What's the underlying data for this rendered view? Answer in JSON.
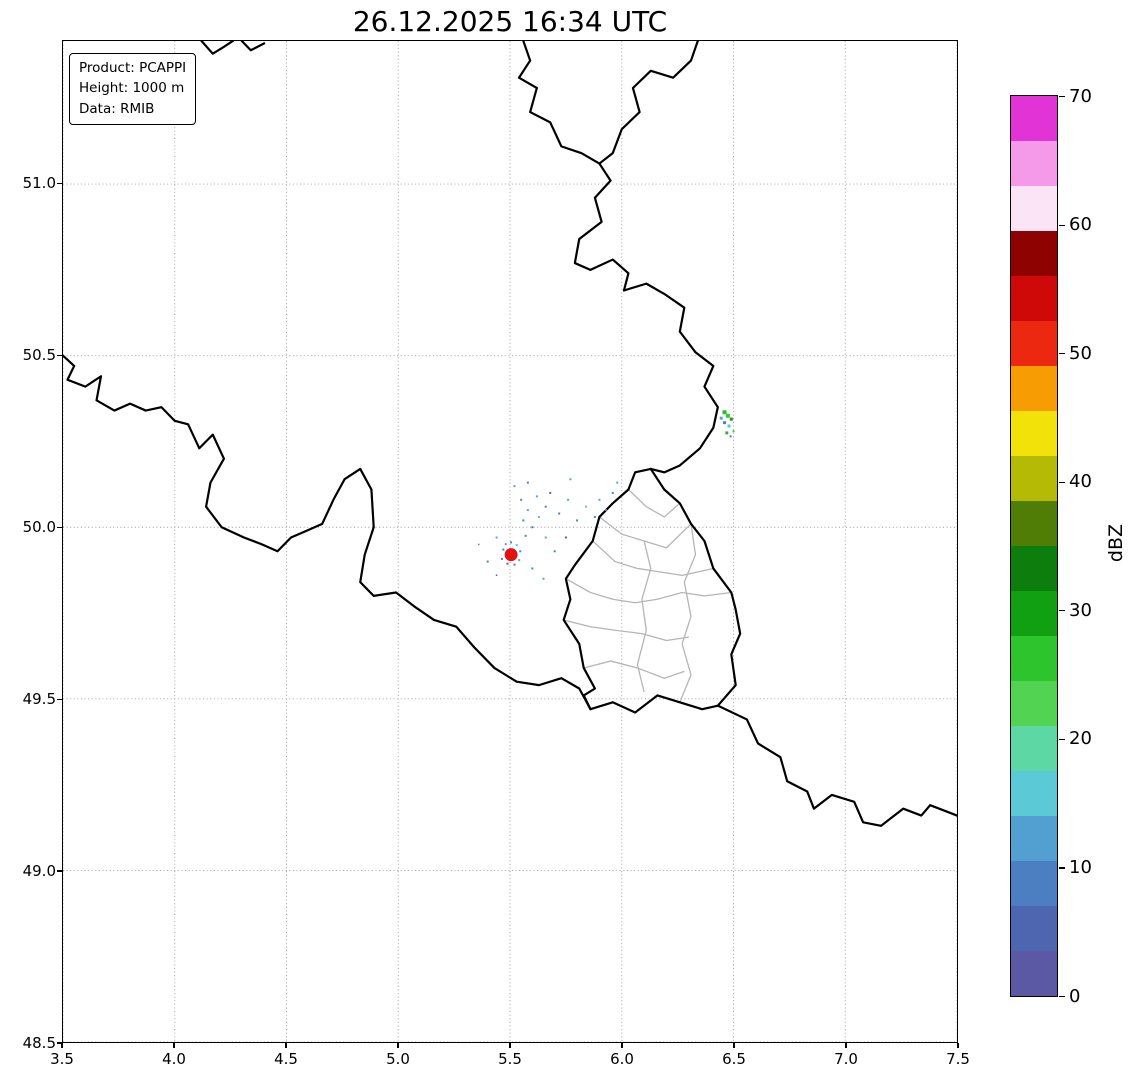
{
  "chart_data": {
    "type": "map",
    "title": "26.12.2025 16:34 UTC",
    "info_box_lines": [
      "Product: PCAPPI",
      "Height: 1000 m",
      "Data: RMIB"
    ],
    "x_range": [
      3.5,
      7.5
    ],
    "y_range": [
      48.5,
      51.417
    ],
    "x_ticks": [
      3.5,
      4.0,
      4.5,
      5.0,
      5.5,
      6.0,
      6.5,
      7.0,
      7.5
    ],
    "x_tick_labels": [
      "3.5",
      "4.0",
      "4.5",
      "5.0",
      "5.5",
      "6.0",
      "6.5",
      "7.0",
      "7.5"
    ],
    "y_ticks": [
      48.5,
      49.0,
      49.5,
      50.0,
      50.5,
      51.0
    ],
    "y_tick_labels": [
      "48.5",
      "49.0",
      "49.5",
      "50.0",
      "50.5",
      "51.0"
    ],
    "grid": "dotted",
    "grid_color": "#9a9a9a",
    "colorbar": {
      "label": "dBZ",
      "min": 0,
      "max": 70,
      "ticks": [
        0,
        10,
        20,
        30,
        40,
        50,
        60,
        70
      ],
      "tick_labels": [
        "0",
        "10",
        "20",
        "30",
        "40",
        "50",
        "60",
        "70"
      ],
      "colors_bottom_to_top": [
        "#5b59a3",
        "#4e66af",
        "#4b7fc2",
        "#52a0d2",
        "#5bc9d6",
        "#5dd8a5",
        "#52d352",
        "#2ec42e",
        "#11a011",
        "#0d7d0d",
        "#4f7d05",
        "#b5bb04",
        "#f2e20a",
        "#f79c02",
        "#ed2810",
        "#cf0808",
        "#8f0202",
        "#fbe4f6",
        "#f49ae9",
        "#e233d6"
      ]
    },
    "radar_site": {
      "lon": 5.505,
      "lat": 49.92,
      "color": "#e11212",
      "radius_px": 6.5
    },
    "echo_points": [
      [
        5.47,
        49.935,
        2,
        "#4f7fc4"
      ],
      [
        5.481,
        49.951,
        2,
        "#55a6d2"
      ],
      [
        5.505,
        49.956,
        2,
        "#4f7fc4"
      ],
      [
        5.53,
        49.948,
        2,
        "#5bc8d2"
      ],
      [
        5.546,
        49.93,
        2,
        "#4f7fc4"
      ],
      [
        5.541,
        49.904,
        2,
        "#55a6d2"
      ],
      [
        5.52,
        49.891,
        2,
        "#4f7fc4"
      ],
      [
        5.489,
        49.894,
        2,
        "#5560a8"
      ],
      [
        5.464,
        49.908,
        2,
        "#4f7fc4"
      ],
      [
        5.56,
        50.02,
        2,
        "#4f7fc4"
      ],
      [
        5.58,
        50.05,
        2,
        "#55a6d2"
      ],
      [
        5.6,
        50.0,
        2,
        "#4f7fc4"
      ],
      [
        5.63,
        50.03,
        2,
        "#5bc8d2"
      ],
      [
        5.66,
        50.06,
        2,
        "#4f7fc4"
      ],
      [
        5.62,
        50.09,
        2,
        "#55a6d2"
      ],
      [
        5.55,
        50.08,
        2,
        "#4f7fc4"
      ],
      [
        5.52,
        50.12,
        2,
        "#55a6d2"
      ],
      [
        5.58,
        50.13,
        2,
        "#4f7fc4"
      ],
      [
        5.68,
        50.1,
        2,
        "#5560a8"
      ],
      [
        5.72,
        50.04,
        2,
        "#4f7fc4"
      ],
      [
        5.76,
        50.08,
        2,
        "#55a6d2"
      ],
      [
        5.8,
        50.02,
        2,
        "#4f7fc4"
      ],
      [
        5.84,
        50.06,
        2,
        "#5bc8d2"
      ],
      [
        5.88,
        50.03,
        2,
        "#4f7fc4"
      ],
      [
        5.9,
        50.08,
        2,
        "#55a6d2"
      ],
      [
        5.93,
        50.05,
        2,
        "#4f7fc4"
      ],
      [
        5.66,
        49.97,
        2,
        "#55a6d2"
      ],
      [
        5.7,
        49.93,
        2,
        "#4f7fc4"
      ],
      [
        5.75,
        49.97,
        2,
        "#5560a8"
      ],
      [
        5.6,
        49.88,
        2,
        "#4f7fc4"
      ],
      [
        5.65,
        49.85,
        2,
        "#55a6d2"
      ],
      [
        5.57,
        49.975,
        2,
        "#4f7fc4"
      ],
      [
        5.44,
        49.97,
        2,
        "#55a6d2"
      ],
      [
        5.4,
        49.9,
        2,
        "#4f7fc4"
      ],
      [
        5.44,
        49.86,
        1.5,
        "#5560a8"
      ],
      [
        5.36,
        49.95,
        1.5,
        "#4f7fc4"
      ],
      [
        5.77,
        50.14,
        2,
        "#55a6d2"
      ],
      [
        5.96,
        50.1,
        2,
        "#4f7fc4"
      ],
      [
        5.98,
        50.13,
        2,
        "#55a6d2"
      ],
      [
        6.46,
        50.335,
        4,
        "#2db82d"
      ],
      [
        6.475,
        50.325,
        4,
        "#35c935"
      ],
      [
        6.46,
        50.305,
        3,
        "#4f7fc4"
      ],
      [
        6.48,
        50.295,
        3,
        "#5bc8d2"
      ],
      [
        6.47,
        50.275,
        3,
        "#2db82d"
      ],
      [
        6.49,
        50.315,
        3,
        "#109b10"
      ],
      [
        6.445,
        50.318,
        3,
        "#55a6d2"
      ],
      [
        6.487,
        50.265,
        2,
        "#4f7fc4"
      ],
      [
        6.5,
        50.28,
        2,
        "#35c935"
      ]
    ],
    "borders": {
      "country_color": "#000000",
      "country_width": 2.2,
      "region_color": "#b5b5b5",
      "region_width": 1.3,
      "country_paths": [
        [
          [
            4.12,
            51.417
          ],
          [
            4.17,
            51.38
          ],
          [
            4.22,
            51.4
          ],
          [
            4.26,
            51.417
          ]
        ],
        [
          [
            4.3,
            51.417
          ],
          [
            4.34,
            51.39
          ],
          [
            4.4,
            51.41
          ]
        ],
        [
          [
            5.56,
            51.417
          ],
          [
            5.59,
            51.36
          ],
          [
            5.54,
            51.31
          ],
          [
            5.62,
            51.28
          ],
          [
            5.59,
            51.21
          ],
          [
            5.68,
            51.18
          ],
          [
            5.73,
            51.11
          ],
          [
            5.82,
            51.09
          ],
          [
            5.9,
            51.06
          ]
        ],
        [
          [
            6.34,
            51.417
          ],
          [
            6.31,
            51.36
          ],
          [
            6.23,
            51.31
          ],
          [
            6.13,
            51.33
          ],
          [
            6.05,
            51.28
          ],
          [
            6.08,
            51.21
          ],
          [
            6.0,
            51.16
          ],
          [
            5.96,
            51.09
          ],
          [
            5.9,
            51.06
          ]
        ],
        [
          [
            5.9,
            51.06
          ],
          [
            5.95,
            51.01
          ],
          [
            5.88,
            50.96
          ],
          [
            5.91,
            50.89
          ],
          [
            5.81,
            50.84
          ],
          [
            5.79,
            50.77
          ],
          [
            5.86,
            50.75
          ],
          [
            5.96,
            50.78
          ],
          [
            6.03,
            50.74
          ],
          [
            6.01,
            50.69
          ],
          [
            6.11,
            50.71
          ],
          [
            6.19,
            50.68
          ],
          [
            6.28,
            50.64
          ],
          [
            6.26,
            50.57
          ],
          [
            6.33,
            50.51
          ],
          [
            6.41,
            50.47
          ],
          [
            6.37,
            50.41
          ],
          [
            6.43,
            50.35
          ],
          [
            6.41,
            50.29
          ],
          [
            6.35,
            50.23
          ],
          [
            6.26,
            50.18
          ],
          [
            6.19,
            50.16
          ],
          [
            6.13,
            50.17
          ]
        ],
        [
          [
            6.13,
            50.17
          ],
          [
            6.06,
            50.16
          ],
          [
            6.03,
            50.11
          ],
          [
            5.96,
            50.07
          ],
          [
            5.9,
            50.03
          ],
          [
            5.87,
            49.96
          ],
          [
            5.79,
            49.89
          ],
          [
            5.75,
            49.85
          ],
          [
            5.77,
            49.79
          ],
          [
            5.74,
            49.73
          ],
          [
            5.81,
            49.66
          ],
          [
            5.83,
            49.59
          ],
          [
            5.88,
            49.53
          ],
          [
            5.83,
            49.51
          ],
          [
            5.86,
            49.47
          ]
        ],
        [
          [
            5.86,
            49.47
          ],
          [
            5.96,
            49.49
          ],
          [
            6.06,
            49.46
          ],
          [
            6.16,
            49.51
          ],
          [
            6.26,
            49.49
          ],
          [
            6.36,
            49.47
          ],
          [
            6.43,
            49.48
          ],
          [
            6.51,
            49.54
          ],
          [
            6.49,
            49.63
          ],
          [
            6.53,
            49.69
          ],
          [
            6.51,
            49.76
          ],
          [
            6.49,
            49.81
          ],
          [
            6.41,
            49.88
          ],
          [
            6.37,
            49.96
          ],
          [
            6.31,
            50.01
          ],
          [
            6.26,
            50.07
          ],
          [
            6.19,
            50.11
          ],
          [
            6.13,
            50.17
          ]
        ],
        [
          [
            6.43,
            49.48
          ],
          [
            6.56,
            49.44
          ],
          [
            6.61,
            49.37
          ],
          [
            6.71,
            49.33
          ],
          [
            6.74,
            49.26
          ],
          [
            6.83,
            49.23
          ],
          [
            6.86,
            49.18
          ],
          [
            6.94,
            49.22
          ],
          [
            7.04,
            49.2
          ],
          [
            7.08,
            49.14
          ],
          [
            7.16,
            49.13
          ],
          [
            7.26,
            49.18
          ],
          [
            7.34,
            49.16
          ],
          [
            7.38,
            49.19
          ],
          [
            7.46,
            49.17
          ],
          [
            7.5,
            49.16
          ]
        ],
        [
          [
            3.5,
            50.5
          ],
          [
            3.55,
            50.47
          ],
          [
            3.52,
            50.43
          ],
          [
            3.6,
            50.41
          ],
          [
            3.67,
            50.44
          ],
          [
            3.65,
            50.37
          ],
          [
            3.73,
            50.34
          ],
          [
            3.8,
            50.36
          ],
          [
            3.87,
            50.34
          ],
          [
            3.94,
            50.35
          ],
          [
            4.0,
            50.31
          ],
          [
            4.06,
            50.3
          ],
          [
            4.11,
            50.23
          ],
          [
            4.17,
            50.27
          ],
          [
            4.22,
            50.2
          ],
          [
            4.16,
            50.13
          ],
          [
            4.14,
            50.06
          ],
          [
            4.21,
            50.0
          ],
          [
            4.31,
            49.97
          ],
          [
            4.39,
            49.95
          ],
          [
            4.46,
            49.93
          ],
          [
            4.52,
            49.97
          ],
          [
            4.59,
            49.99
          ],
          [
            4.66,
            50.01
          ],
          [
            4.71,
            50.08
          ],
          [
            4.76,
            50.14
          ],
          [
            4.83,
            50.17
          ],
          [
            4.88,
            50.11
          ],
          [
            4.89,
            50.0
          ],
          [
            4.85,
            49.92
          ],
          [
            4.83,
            49.84
          ],
          [
            4.89,
            49.8
          ],
          [
            4.99,
            49.81
          ],
          [
            5.07,
            49.77
          ],
          [
            5.16,
            49.73
          ],
          [
            5.26,
            49.71
          ],
          [
            5.34,
            49.65
          ],
          [
            5.43,
            49.59
          ],
          [
            5.53,
            49.55
          ],
          [
            5.63,
            49.54
          ],
          [
            5.73,
            49.56
          ],
          [
            5.81,
            49.53
          ],
          [
            5.86,
            49.47
          ]
        ]
      ],
      "region_paths": [
        [
          [
            6.03,
            50.11
          ],
          [
            6.11,
            50.06
          ],
          [
            6.19,
            50.03
          ],
          [
            6.26,
            50.07
          ]
        ],
        [
          [
            5.9,
            50.03
          ],
          [
            6.0,
            49.98
          ],
          [
            6.1,
            49.96
          ],
          [
            6.2,
            49.94
          ],
          [
            6.31,
            50.01
          ]
        ],
        [
          [
            5.87,
            49.96
          ],
          [
            5.97,
            49.9
          ],
          [
            6.07,
            49.88
          ],
          [
            6.17,
            49.87
          ],
          [
            6.27,
            49.86
          ],
          [
            6.41,
            49.88
          ]
        ],
        [
          [
            5.75,
            49.85
          ],
          [
            5.86,
            49.81
          ],
          [
            5.96,
            49.79
          ],
          [
            6.06,
            49.78
          ],
          [
            6.16,
            49.79
          ],
          [
            6.27,
            49.81
          ],
          [
            6.37,
            49.8
          ],
          [
            6.49,
            49.81
          ]
        ],
        [
          [
            6.1,
            49.96
          ],
          [
            6.13,
            49.88
          ],
          [
            6.09,
            49.79
          ],
          [
            6.11,
            49.7
          ],
          [
            6.07,
            49.6
          ],
          [
            6.1,
            49.52
          ]
        ],
        [
          [
            5.74,
            49.73
          ],
          [
            5.86,
            49.71
          ],
          [
            5.97,
            49.7
          ],
          [
            6.09,
            49.69
          ],
          [
            6.2,
            49.67
          ],
          [
            6.3,
            49.68
          ]
        ],
        [
          [
            5.83,
            49.59
          ],
          [
            5.95,
            49.61
          ],
          [
            6.07,
            49.59
          ],
          [
            6.19,
            49.56
          ],
          [
            6.28,
            49.58
          ]
        ],
        [
          [
            6.31,
            50.01
          ],
          [
            6.33,
            49.92
          ],
          [
            6.28,
            49.84
          ],
          [
            6.31,
            49.74
          ],
          [
            6.27,
            49.66
          ],
          [
            6.31,
            49.57
          ],
          [
            6.26,
            49.49
          ]
        ]
      ]
    }
  }
}
